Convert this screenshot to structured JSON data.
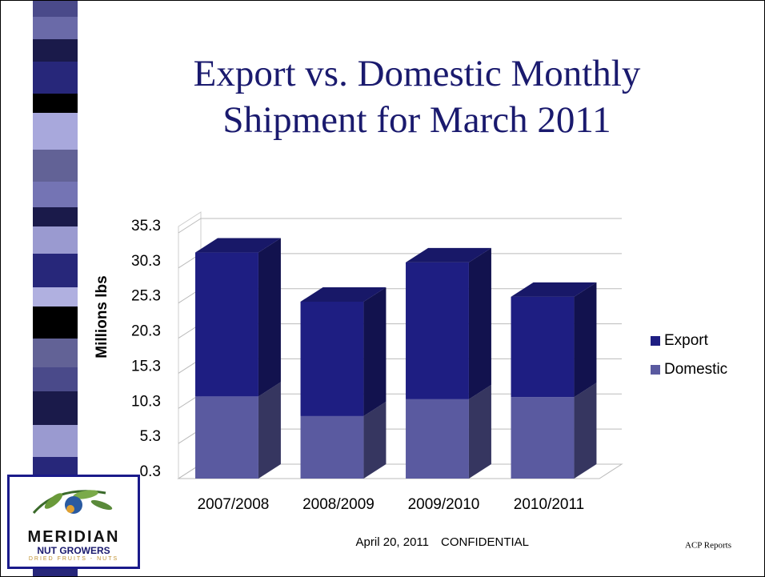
{
  "chart_data": {
    "type": "bar3d_stacked",
    "title": "Export vs. Domestic Monthly Shipment for March 2011",
    "y_label": "Millions lbs",
    "categories": [
      "2007/2008",
      "2008/2009",
      "2009/2010",
      "2010/2011"
    ],
    "series": [
      {
        "name": "Domestic",
        "color": "#5a5aa0",
        "values": [
          12.0,
          9.2,
          11.6,
          11.9
        ]
      },
      {
        "name": "Export",
        "color": "#1e1e82",
        "values": [
          20.5,
          16.3,
          19.5,
          14.3
        ]
      }
    ],
    "ylim": [
      0.3,
      35.3
    ],
    "yticks": [
      0.3,
      5.3,
      10.3,
      15.3,
      20.3,
      25.3,
      30.3,
      35.3
    ],
    "grid": true
  },
  "footer": {
    "date": "April 20, 2011",
    "confidential": "CONFIDENTIAL",
    "source": "ACP Reports"
  },
  "logo": {
    "name": "MERIDIAN",
    "subtitle": "NUT GROWERS",
    "tagline": "DRIED FRUITS - NUTS"
  }
}
